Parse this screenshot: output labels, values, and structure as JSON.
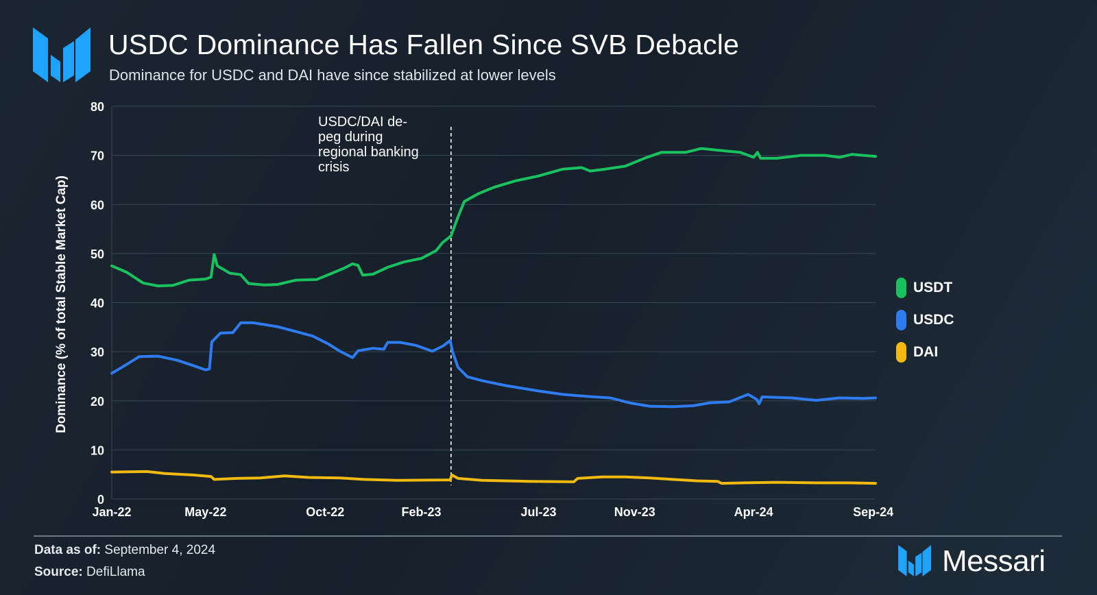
{
  "header": {
    "title": "USDC Dominance Has Fallen Since SVB Debacle",
    "subtitle": "Dominance for USDC and DAI have since stabilized at lower levels"
  },
  "footer": {
    "data_as_of_label": "Data as of:",
    "data_as_of_value": "September 4, 2024",
    "source_label": "Source:",
    "source_value": "DefiLlama",
    "brand": "Messari"
  },
  "colors": {
    "usdt": "#19c15f",
    "usdc": "#2f7cf0",
    "dai": "#f2b90f",
    "brand": "#1fa3ff"
  },
  "chart_data": {
    "type": "line",
    "title": "USDC Dominance Has Fallen Since SVB Debacle",
    "subtitle": "Dominance for USDC and DAI have since stabilized at lower levels",
    "xlabel": "",
    "ylabel": "Dominance (% of total Stable Market Cap)",
    "ylim": [
      0,
      80
    ],
    "yticks": [
      0,
      10,
      20,
      30,
      40,
      50,
      60,
      70,
      80
    ],
    "xlim": [
      "2022-01-01",
      "2024-09-04"
    ],
    "xtick_labels": [
      {
        "date": "2022-01-01",
        "label": "Jan-22"
      },
      {
        "date": "2022-05-01",
        "label": "May-22"
      },
      {
        "date": "2022-10-01",
        "label": "Oct-22"
      },
      {
        "date": "2023-02-01",
        "label": "Feb-23"
      },
      {
        "date": "2023-07-01",
        "label": "Jul-23"
      },
      {
        "date": "2023-11-01",
        "label": "Nov-23"
      },
      {
        "date": "2024-04-01",
        "label": "Apr-24"
      },
      {
        "date": "2024-09-01",
        "label": "Sep-24"
      }
    ],
    "grid": true,
    "legend_position": "right",
    "annotation": {
      "date": "2023-03-11",
      "text_lines": [
        "USDC/DAI de-",
        "peg during",
        "regional banking",
        "crisis"
      ]
    },
    "series": [
      {
        "name": "USDT",
        "color": "#19c15f",
        "points": [
          [
            "2022-01-01",
            47.5
          ],
          [
            "2022-01-20",
            46.2
          ],
          [
            "2022-02-10",
            44.0
          ],
          [
            "2022-03-01",
            43.4
          ],
          [
            "2022-03-20",
            43.5
          ],
          [
            "2022-04-10",
            44.6
          ],
          [
            "2022-05-01",
            44.8
          ],
          [
            "2022-05-08",
            45.2
          ],
          [
            "2022-05-12",
            49.8
          ],
          [
            "2022-05-16",
            47.5
          ],
          [
            "2022-06-01",
            46.0
          ],
          [
            "2022-06-15",
            45.7
          ],
          [
            "2022-06-25",
            43.9
          ],
          [
            "2022-07-15",
            43.6
          ],
          [
            "2022-08-01",
            43.7
          ],
          [
            "2022-08-25",
            44.6
          ],
          [
            "2022-09-20",
            44.7
          ],
          [
            "2022-10-10",
            46.0
          ],
          [
            "2022-10-25",
            47.0
          ],
          [
            "2022-11-05",
            47.9
          ],
          [
            "2022-11-12",
            47.6
          ],
          [
            "2022-11-18",
            45.6
          ],
          [
            "2022-12-01",
            45.8
          ],
          [
            "2022-12-20",
            47.2
          ],
          [
            "2023-01-10",
            48.3
          ],
          [
            "2023-02-01",
            49.0
          ],
          [
            "2023-02-20",
            50.6
          ],
          [
            "2023-02-28",
            52.2
          ],
          [
            "2023-03-11",
            53.6
          ],
          [
            "2023-03-20",
            57.5
          ],
          [
            "2023-03-28",
            60.6
          ],
          [
            "2023-04-15",
            62.2
          ],
          [
            "2023-05-05",
            63.5
          ],
          [
            "2023-06-01",
            64.8
          ],
          [
            "2023-07-01",
            65.8
          ],
          [
            "2023-08-01",
            67.2
          ],
          [
            "2023-08-25",
            67.5
          ],
          [
            "2023-09-05",
            66.8
          ],
          [
            "2023-09-20",
            67.1
          ],
          [
            "2023-10-20",
            67.8
          ],
          [
            "2023-11-15",
            69.5
          ],
          [
            "2023-12-05",
            70.6
          ],
          [
            "2024-01-05",
            70.6
          ],
          [
            "2024-01-25",
            71.4
          ],
          [
            "2024-02-25",
            70.9
          ],
          [
            "2024-03-15",
            70.6
          ],
          [
            "2024-04-01",
            69.6
          ],
          [
            "2024-04-06",
            70.6
          ],
          [
            "2024-04-10",
            69.4
          ],
          [
            "2024-05-01",
            69.4
          ],
          [
            "2024-06-01",
            70.0
          ],
          [
            "2024-07-01",
            70.0
          ],
          [
            "2024-07-20",
            69.6
          ],
          [
            "2024-08-05",
            70.2
          ],
          [
            "2024-09-04",
            69.8
          ]
        ]
      },
      {
        "name": "USDC",
        "color": "#2f7cf0",
        "points": [
          [
            "2022-01-01",
            25.6
          ],
          [
            "2022-01-20",
            27.4
          ],
          [
            "2022-02-05",
            29.0
          ],
          [
            "2022-03-01",
            29.1
          ],
          [
            "2022-03-25",
            28.3
          ],
          [
            "2022-04-15",
            27.2
          ],
          [
            "2022-05-01",
            26.3
          ],
          [
            "2022-05-06",
            26.5
          ],
          [
            "2022-05-09",
            32.0
          ],
          [
            "2022-05-20",
            33.8
          ],
          [
            "2022-06-05",
            33.9
          ],
          [
            "2022-06-15",
            35.9
          ],
          [
            "2022-07-01",
            35.9
          ],
          [
            "2022-08-01",
            35.1
          ],
          [
            "2022-08-25",
            34.1
          ],
          [
            "2022-09-15",
            33.2
          ],
          [
            "2022-10-05",
            31.6
          ],
          [
            "2022-10-20",
            30.1
          ],
          [
            "2022-11-05",
            28.8
          ],
          [
            "2022-11-12",
            30.2
          ],
          [
            "2022-12-01",
            30.7
          ],
          [
            "2022-12-15",
            30.5
          ],
          [
            "2022-12-20",
            31.9
          ],
          [
            "2023-01-05",
            31.9
          ],
          [
            "2023-01-25",
            31.3
          ],
          [
            "2023-02-15",
            30.1
          ],
          [
            "2023-03-01",
            31.2
          ],
          [
            "2023-03-10",
            32.3
          ],
          [
            "2023-03-13",
            30.0
          ],
          [
            "2023-03-20",
            26.8
          ],
          [
            "2023-04-01",
            24.9
          ],
          [
            "2023-04-20",
            24.1
          ],
          [
            "2023-05-20",
            23.1
          ],
          [
            "2023-07-01",
            22.0
          ],
          [
            "2023-08-01",
            21.3
          ],
          [
            "2023-09-01",
            20.9
          ],
          [
            "2023-10-01",
            20.6
          ],
          [
            "2023-10-25",
            19.6
          ],
          [
            "2023-11-20",
            18.9
          ],
          [
            "2023-12-20",
            18.8
          ],
          [
            "2024-01-15",
            19.0
          ],
          [
            "2024-02-05",
            19.6
          ],
          [
            "2024-03-01",
            19.8
          ],
          [
            "2024-03-25",
            21.3
          ],
          [
            "2024-04-05",
            20.3
          ],
          [
            "2024-04-08",
            19.4
          ],
          [
            "2024-04-12",
            20.8
          ],
          [
            "2024-05-20",
            20.6
          ],
          [
            "2024-06-20",
            20.1
          ],
          [
            "2024-07-20",
            20.6
          ],
          [
            "2024-08-20",
            20.5
          ],
          [
            "2024-09-04",
            20.6
          ]
        ]
      },
      {
        "name": "DAI",
        "color": "#f2b90f",
        "points": [
          [
            "2022-01-01",
            5.5
          ],
          [
            "2022-02-15",
            5.6
          ],
          [
            "2022-03-10",
            5.2
          ],
          [
            "2022-04-15",
            4.9
          ],
          [
            "2022-05-08",
            4.6
          ],
          [
            "2022-05-12",
            4.0
          ],
          [
            "2022-06-10",
            4.2
          ],
          [
            "2022-07-10",
            4.3
          ],
          [
            "2022-08-10",
            4.7
          ],
          [
            "2022-09-10",
            4.4
          ],
          [
            "2022-10-20",
            4.3
          ],
          [
            "2022-11-20",
            4.0
          ],
          [
            "2023-01-01",
            3.8
          ],
          [
            "2023-03-10",
            3.9
          ],
          [
            "2023-03-12",
            4.9
          ],
          [
            "2023-03-20",
            4.2
          ],
          [
            "2023-04-20",
            3.8
          ],
          [
            "2023-06-20",
            3.6
          ],
          [
            "2023-08-15",
            3.5
          ],
          [
            "2023-08-20",
            4.2
          ],
          [
            "2023-09-20",
            4.5
          ],
          [
            "2023-10-20",
            4.5
          ],
          [
            "2023-11-20",
            4.3
          ],
          [
            "2023-12-20",
            4.0
          ],
          [
            "2024-01-20",
            3.7
          ],
          [
            "2024-02-15",
            3.6
          ],
          [
            "2024-02-20",
            3.2
          ],
          [
            "2024-03-20",
            3.3
          ],
          [
            "2024-05-01",
            3.4
          ],
          [
            "2024-06-20",
            3.3
          ],
          [
            "2024-08-01",
            3.3
          ],
          [
            "2024-09-04",
            3.2
          ]
        ]
      }
    ]
  }
}
